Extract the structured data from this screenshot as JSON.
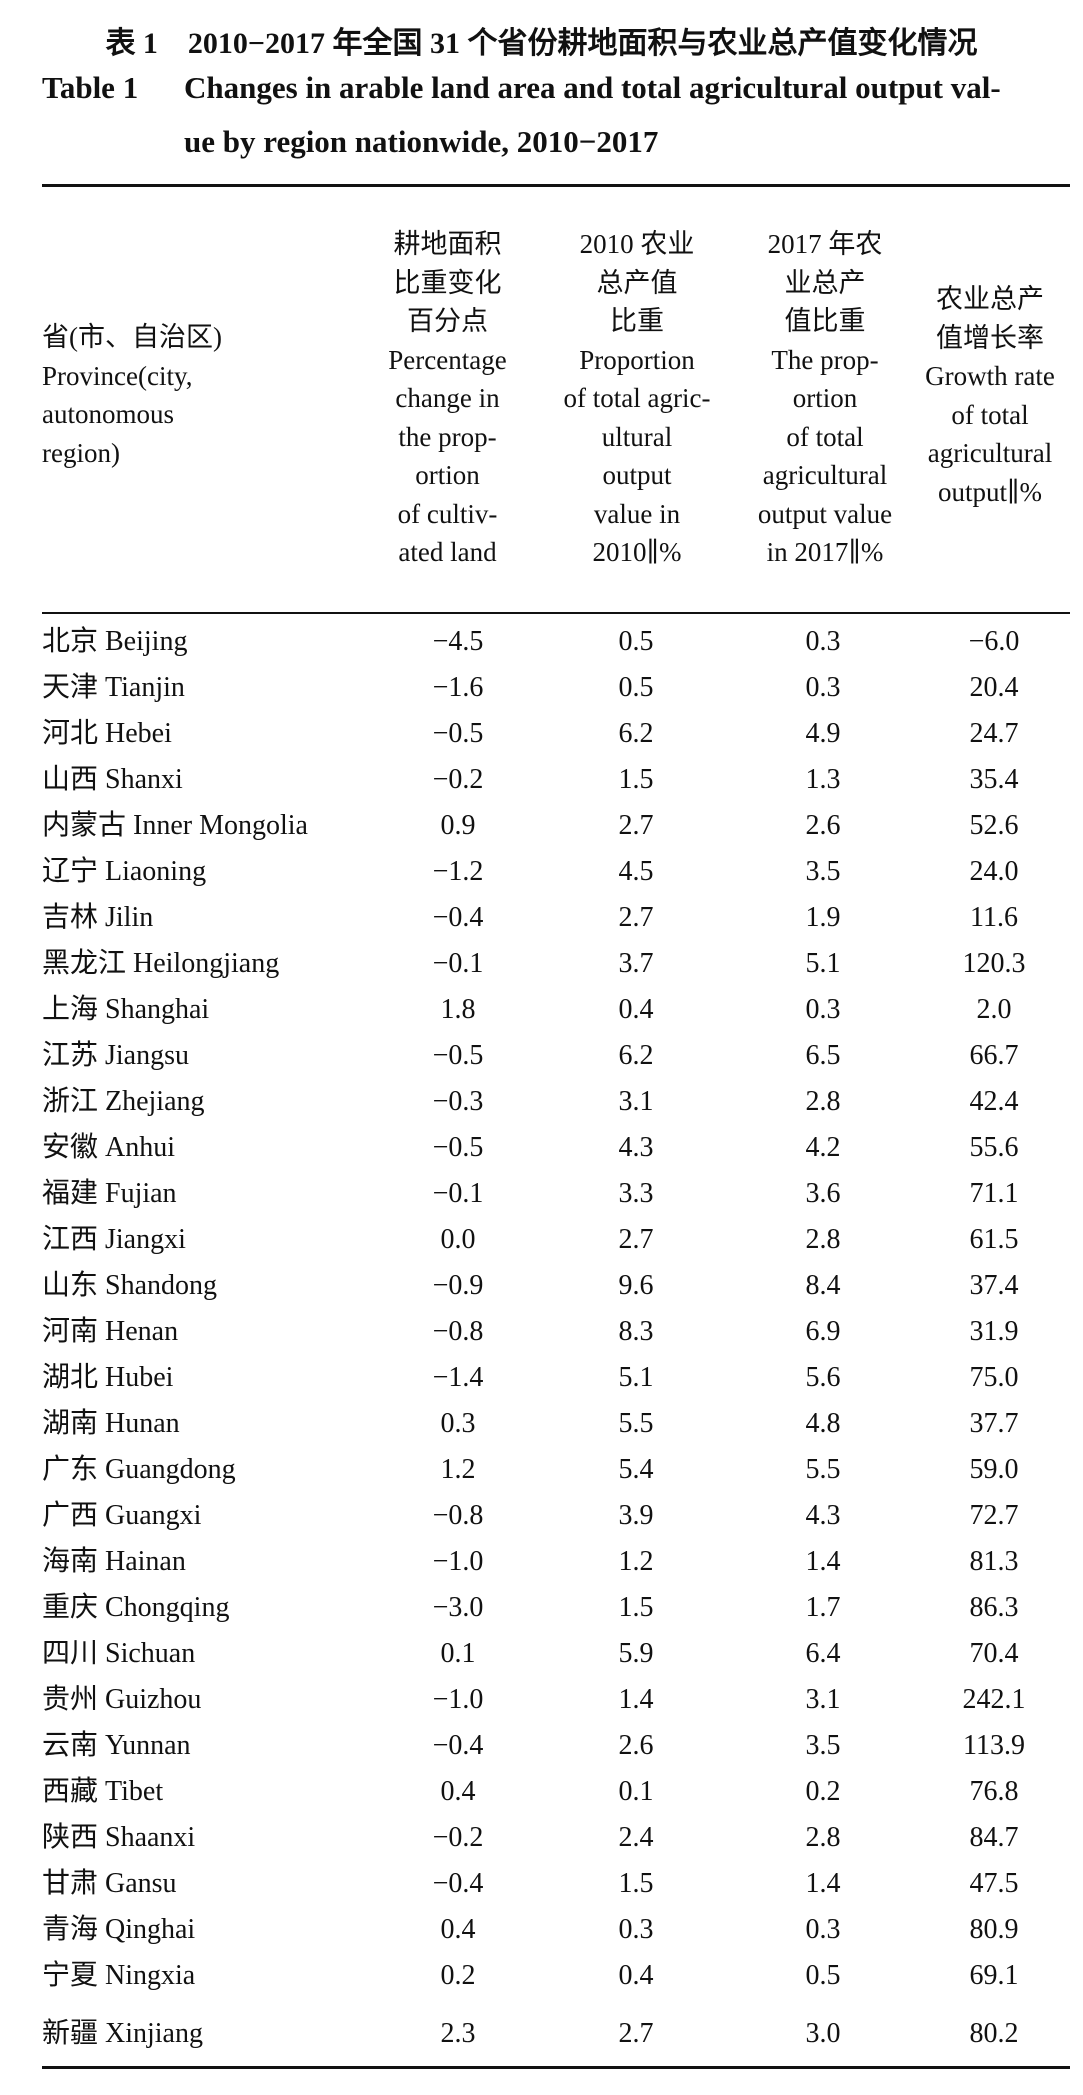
{
  "caption": {
    "zh": "表 1　2010−2017 年全国 31 个省份耕地面积与农业总产值变化情况",
    "en_num": "Table 1",
    "en_line1": "Changes in arable land area and total agricultural output val-",
    "en_line2": "ue by region nationwide, 2010−2017"
  },
  "headers": {
    "province": [
      "省(市、自治区)",
      "Province(city,",
      "autonomous",
      "region)"
    ],
    "c1": [
      "耕地面积",
      "比重变化",
      "百分点",
      "Percentage",
      "change in",
      "the prop-",
      "ortion",
      "of cultiv-",
      "ated land"
    ],
    "c2": [
      "2010 农业",
      "总产值",
      "比重",
      "Proportion",
      "of total agric-",
      "ultural",
      "output",
      "value in",
      "2010∥%"
    ],
    "c3": [
      "2017 年农",
      "业总产",
      "值比重",
      "The prop-",
      "ortion",
      "of total",
      "agricultural",
      "output value",
      "in 2017∥%"
    ],
    "c4": [
      "农业总产",
      "值增长率",
      "Growth rate",
      "of total",
      "agricultural",
      "output∥%"
    ]
  },
  "rows": [
    {
      "name": "北京 Beijing",
      "v1": "−4.5",
      "v2": "0.5",
      "v3": "0.3",
      "v4": "−6.0"
    },
    {
      "name": "天津 Tianjin",
      "v1": "−1.6",
      "v2": "0.5",
      "v3": "0.3",
      "v4": "20.4"
    },
    {
      "name": "河北 Hebei",
      "v1": "−0.5",
      "v2": "6.2",
      "v3": "4.9",
      "v4": "24.7"
    },
    {
      "name": "山西 Shanxi",
      "v1": "−0.2",
      "v2": "1.5",
      "v3": "1.3",
      "v4": "35.4"
    },
    {
      "name": "内蒙古 Inner Mongolia",
      "v1": "0.9",
      "v2": "2.7",
      "v3": "2.6",
      "v4": "52.6"
    },
    {
      "name": "辽宁 Liaoning",
      "v1": "−1.2",
      "v2": "4.5",
      "v3": "3.5",
      "v4": "24.0"
    },
    {
      "name": "吉林 Jilin",
      "v1": "−0.4",
      "v2": "2.7",
      "v3": "1.9",
      "v4": "11.6"
    },
    {
      "name": "黑龙江 Heilongjiang",
      "v1": "−0.1",
      "v2": "3.7",
      "v3": "5.1",
      "v4": "120.3"
    },
    {
      "name": "上海 Shanghai",
      "v1": "1.8",
      "v2": "0.4",
      "v3": "0.3",
      "v4": "2.0"
    },
    {
      "name": "江苏 Jiangsu",
      "v1": "−0.5",
      "v2": "6.2",
      "v3": "6.5",
      "v4": "66.7"
    },
    {
      "name": "浙江 Zhejiang",
      "v1": "−0.3",
      "v2": "3.1",
      "v3": "2.8",
      "v4": "42.4"
    },
    {
      "name": "安徽 Anhui",
      "v1": "−0.5",
      "v2": "4.3",
      "v3": "4.2",
      "v4": "55.6"
    },
    {
      "name": "福建 Fujian",
      "v1": "−0.1",
      "v2": "3.3",
      "v3": "3.6",
      "v4": "71.1"
    },
    {
      "name": "江西 Jiangxi",
      "v1": "0.0",
      "v2": "2.7",
      "v3": "2.8",
      "v4": "61.5"
    },
    {
      "name": "山东 Shandong",
      "v1": "−0.9",
      "v2": "9.6",
      "v3": "8.4",
      "v4": "37.4"
    },
    {
      "name": "河南 Henan",
      "v1": "−0.8",
      "v2": "8.3",
      "v3": "6.9",
      "v4": "31.9"
    },
    {
      "name": "湖北 Hubei",
      "v1": "−1.4",
      "v2": "5.1",
      "v3": "5.6",
      "v4": "75.0"
    },
    {
      "name": "湖南 Hunan",
      "v1": "0.3",
      "v2": "5.5",
      "v3": "4.8",
      "v4": "37.7"
    },
    {
      "name": "广东 Guangdong",
      "v1": "1.2",
      "v2": "5.4",
      "v3": "5.5",
      "v4": "59.0"
    },
    {
      "name": "广西 Guangxi",
      "v1": "−0.8",
      "v2": "3.9",
      "v3": "4.3",
      "v4": "72.7"
    },
    {
      "name": "海南 Hainan",
      "v1": "−1.0",
      "v2": "1.2",
      "v3": "1.4",
      "v4": "81.3"
    },
    {
      "name": "重庆 Chongqing",
      "v1": "−3.0",
      "v2": "1.5",
      "v3": "1.7",
      "v4": "86.3"
    },
    {
      "name": "四川 Sichuan",
      "v1": "0.1",
      "v2": "5.9",
      "v3": "6.4",
      "v4": "70.4"
    },
    {
      "name": "贵州 Guizhou",
      "v1": "−1.0",
      "v2": "1.4",
      "v3": "3.1",
      "v4": "242.1"
    },
    {
      "name": "云南 Yunnan",
      "v1": "−0.4",
      "v2": "2.6",
      "v3": "3.5",
      "v4": "113.9"
    },
    {
      "name": "西藏 Tibet",
      "v1": "0.4",
      "v2": "0.1",
      "v3": "0.2",
      "v4": "76.8"
    },
    {
      "name": "陕西 Shaanxi",
      "v1": "−0.2",
      "v2": "2.4",
      "v3": "2.8",
      "v4": "84.7"
    },
    {
      "name": "甘肃 Gansu",
      "v1": "−0.4",
      "v2": "1.5",
      "v3": "1.4",
      "v4": "47.5"
    },
    {
      "name": "青海 Qinghai",
      "v1": "0.4",
      "v2": "0.3",
      "v3": "0.3",
      "v4": "80.9"
    },
    {
      "name": "宁夏 Ningxia",
      "v1": "0.2",
      "v2": "0.4",
      "v3": "0.5",
      "v4": "69.1"
    },
    {
      "name": "新疆 Xinjiang",
      "v1": "2.3",
      "v2": "2.7",
      "v3": "3.0",
      "v4": "80.2"
    }
  ]
}
